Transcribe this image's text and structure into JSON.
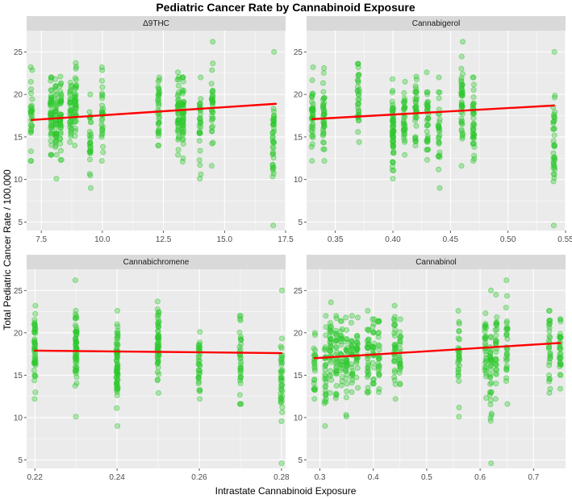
{
  "title": "Pediatric Cancer Rate by Cannabinoid Exposure",
  "xlabel": "Intrastate Cannabinoid Exposure",
  "ylabel": "Total Pediatric Cancer Rate / 100,000",
  "colors": {
    "panel_bg": "#ebebeb",
    "grid": "#ffffff",
    "strip_bg": "#d9d9d9",
    "point": "#2ec92e",
    "trend": "#ff0000"
  },
  "chart_data": [
    {
      "type": "scatter",
      "panel": "Δ9THC",
      "xlim": [
        6.9,
        17.5
      ],
      "ylim": [
        4.0,
        27.5
      ],
      "xticks": [
        7.5,
        10.0,
        12.5,
        15.0,
        17.5
      ],
      "xtick_labels": [
        "7.5",
        "10.0",
        "12.5",
        "15.0",
        "17.5"
      ],
      "yticks": [
        5,
        10,
        15,
        20,
        25
      ],
      "ytick_labels": [
        "5",
        "10",
        "15",
        "20",
        "25"
      ],
      "trend": {
        "x": [
          7.1,
          17.1
        ],
        "y": [
          17.0,
          18.9
        ]
      },
      "groups": [
        {
          "x": 7.1,
          "ymin": 12.2,
          "ymax": 23.2,
          "n": 30
        },
        {
          "x": 7.9,
          "ymin": 12.9,
          "ymax": 22.0,
          "n": 45
        },
        {
          "x": 8.1,
          "ymin": 10.1,
          "ymax": 21.8,
          "n": 45
        },
        {
          "x": 8.3,
          "ymin": 12.3,
          "ymax": 22.1,
          "n": 40
        },
        {
          "x": 8.7,
          "ymin": 14.4,
          "ymax": 21.4,
          "n": 35
        },
        {
          "x": 8.9,
          "ymin": 14.0,
          "ymax": 23.7,
          "n": 40
        },
        {
          "x": 9.5,
          "ymin": 9.0,
          "ymax": 20.0,
          "n": 30
        },
        {
          "x": 10.0,
          "ymin": 12.2,
          "ymax": 23.2,
          "n": 30
        },
        {
          "x": 12.3,
          "ymin": 14.0,
          "ymax": 22.0,
          "n": 35
        },
        {
          "x": 13.1,
          "ymin": 12.9,
          "ymax": 22.6,
          "n": 40
        },
        {
          "x": 13.3,
          "ymin": 12.1,
          "ymax": 22.0,
          "n": 45
        },
        {
          "x": 14.0,
          "ymin": 10.1,
          "ymax": 22.0,
          "n": 30
        },
        {
          "x": 14.5,
          "ymin": 11.6,
          "ymax": 26.2,
          "n": 35
        },
        {
          "x": 17.0,
          "ymin": 4.6,
          "ymax": 25.0,
          "n": 40
        }
      ]
    },
    {
      "type": "scatter",
      "panel": "Cannabigerol",
      "xlim": [
        0.325,
        0.55
      ],
      "ylim": [
        4.0,
        27.5
      ],
      "xticks": [
        0.35,
        0.4,
        0.45,
        0.5,
        0.55
      ],
      "xtick_labels": [
        "0.35",
        "0.40",
        "0.45",
        "0.50",
        "0.55"
      ],
      "yticks": [
        5,
        10,
        15,
        20,
        25
      ],
      "ytick_labels": [
        "5",
        "10",
        "15",
        "20",
        "25"
      ],
      "trend": {
        "x": [
          0.33,
          0.54
        ],
        "y": [
          17.1,
          18.7
        ]
      },
      "groups": [
        {
          "x": 0.33,
          "ymin": 12.2,
          "ymax": 23.2,
          "n": 40
        },
        {
          "x": 0.34,
          "ymin": 12.2,
          "ymax": 23.1,
          "n": 40
        },
        {
          "x": 0.37,
          "ymin": 14.4,
          "ymax": 23.6,
          "n": 35
        },
        {
          "x": 0.4,
          "ymin": 10.1,
          "ymax": 21.8,
          "n": 60
        },
        {
          "x": 0.41,
          "ymin": 12.9,
          "ymax": 21.5,
          "n": 35
        },
        {
          "x": 0.42,
          "ymin": 14.0,
          "ymax": 22.1,
          "n": 35
        },
        {
          "x": 0.43,
          "ymin": 12.3,
          "ymax": 22.6,
          "n": 35
        },
        {
          "x": 0.44,
          "ymin": 9.0,
          "ymax": 22.0,
          "n": 30
        },
        {
          "x": 0.46,
          "ymin": 11.6,
          "ymax": 26.2,
          "n": 45
        },
        {
          "x": 0.47,
          "ymin": 12.2,
          "ymax": 22.0,
          "n": 40
        },
        {
          "x": 0.54,
          "ymin": 4.6,
          "ymax": 25.0,
          "n": 40
        }
      ]
    },
    {
      "type": "scatter",
      "panel": "Cannabichromene",
      "xlim": [
        0.218,
        0.281
      ],
      "ylim": [
        4.0,
        27.5
      ],
      "xticks": [
        0.22,
        0.24,
        0.26,
        0.28
      ],
      "xtick_labels": [
        "0.22",
        "0.24",
        "0.26",
        "0.28"
      ],
      "yticks": [
        5,
        10,
        15,
        20,
        25
      ],
      "ytick_labels": [
        "5",
        "10",
        "15",
        "20",
        "25"
      ],
      "trend": {
        "x": [
          0.22,
          0.28
        ],
        "y": [
          17.9,
          17.6
        ]
      },
      "groups": [
        {
          "x": 0.22,
          "ymin": 12.2,
          "ymax": 23.2,
          "n": 50
        },
        {
          "x": 0.23,
          "ymin": 10.1,
          "ymax": 26.2,
          "n": 60
        },
        {
          "x": 0.24,
          "ymin": 9.0,
          "ymax": 22.6,
          "n": 70
        },
        {
          "x": 0.25,
          "ymin": 12.9,
          "ymax": 23.7,
          "n": 60
        },
        {
          "x": 0.26,
          "ymin": 12.2,
          "ymax": 20.1,
          "n": 35
        },
        {
          "x": 0.27,
          "ymin": 11.6,
          "ymax": 22.0,
          "n": 35
        },
        {
          "x": 0.28,
          "ymin": 4.6,
          "ymax": 25.0,
          "n": 40
        }
      ]
    },
    {
      "type": "scatter",
      "panel": "Cannabinol",
      "xlim": [
        0.275,
        0.76
      ],
      "ylim": [
        4.0,
        27.5
      ],
      "xticks": [
        0.3,
        0.4,
        0.5,
        0.6,
        0.7
      ],
      "xtick_labels": [
        "0.3",
        "0.4",
        "0.5",
        "0.6",
        "0.7"
      ],
      "yticks": [
        5,
        10,
        15,
        20,
        25
      ],
      "ytick_labels": [
        "5",
        "10",
        "15",
        "20",
        "25"
      ],
      "trend": {
        "x": [
          0.29,
          0.75
        ],
        "y": [
          17.0,
          18.8
        ]
      },
      "groups": [
        {
          "x": 0.29,
          "ymin": 12.2,
          "ymax": 20.0,
          "n": 25
        },
        {
          "x": 0.31,
          "ymin": 9.0,
          "ymax": 22.0,
          "n": 30
        },
        {
          "x": 0.32,
          "ymin": 12.9,
          "ymax": 23.6,
          "n": 30
        },
        {
          "x": 0.33,
          "ymin": 12.3,
          "ymax": 22.0,
          "n": 30
        },
        {
          "x": 0.34,
          "ymin": 13.8,
          "ymax": 21.4,
          "n": 25
        },
        {
          "x": 0.35,
          "ymin": 10.1,
          "ymax": 21.8,
          "n": 30
        },
        {
          "x": 0.36,
          "ymin": 13.0,
          "ymax": 22.0,
          "n": 25
        },
        {
          "x": 0.37,
          "ymin": 13.5,
          "ymax": 21.8,
          "n": 25
        },
        {
          "x": 0.39,
          "ymin": 12.9,
          "ymax": 22.6,
          "n": 30
        },
        {
          "x": 0.4,
          "ymin": 14.0,
          "ymax": 21.6,
          "n": 25
        },
        {
          "x": 0.41,
          "ymin": 13.0,
          "ymax": 21.4,
          "n": 25
        },
        {
          "x": 0.44,
          "ymin": 12.2,
          "ymax": 23.2,
          "n": 30
        },
        {
          "x": 0.45,
          "ymin": 13.9,
          "ymax": 21.6,
          "n": 25
        },
        {
          "x": 0.56,
          "ymin": 10.1,
          "ymax": 22.6,
          "n": 30
        },
        {
          "x": 0.61,
          "ymin": 12.3,
          "ymax": 22.3,
          "n": 30
        },
        {
          "x": 0.62,
          "ymin": 4.6,
          "ymax": 25.0,
          "n": 35
        },
        {
          "x": 0.63,
          "ymin": 12.2,
          "ymax": 24.5,
          "n": 30
        },
        {
          "x": 0.65,
          "ymin": 11.6,
          "ymax": 26.2,
          "n": 30
        },
        {
          "x": 0.73,
          "ymin": 12.9,
          "ymax": 22.6,
          "n": 30
        },
        {
          "x": 0.75,
          "ymin": 13.4,
          "ymax": 21.6,
          "n": 30
        }
      ]
    }
  ]
}
